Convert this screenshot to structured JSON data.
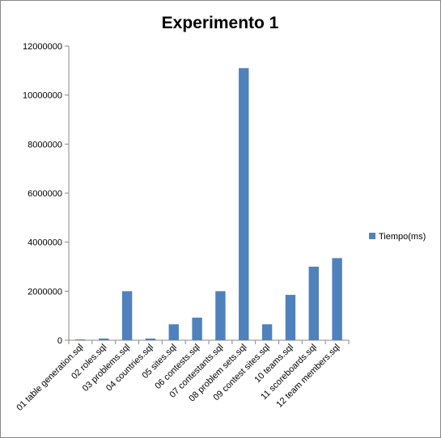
{
  "chart_data": {
    "type": "bar",
    "title": "Experimento 1",
    "categories": [
      "01 table generation.sql",
      "02 roles.sql",
      "03 problems.sql",
      "04 countries.sql",
      "05 sites.sql",
      "06 contests.sql",
      "07 contestants.sql",
      "08 problem sets.sql",
      "09 contest sites.sql",
      "10 teams.sql",
      "11 scoreboards.sql",
      "12 team members.sql"
    ],
    "series": [
      {
        "name": "Tiempo(ms)",
        "color": "#4F81BD",
        "values": [
          30000,
          70000,
          2000000,
          70000,
          650000,
          920000,
          2000000,
          11100000,
          650000,
          1850000,
          3000000,
          3350000
        ]
      }
    ],
    "ylim": [
      0,
      12000000
    ],
    "yticks": [
      0,
      2000000,
      4000000,
      6000000,
      8000000,
      10000000,
      12000000
    ],
    "ytick_labels": [
      "0",
      "2000000",
      "4000000",
      "6000000",
      "8000000",
      "10000000",
      "12000000"
    ],
    "grid": false,
    "legend_position": "right"
  }
}
